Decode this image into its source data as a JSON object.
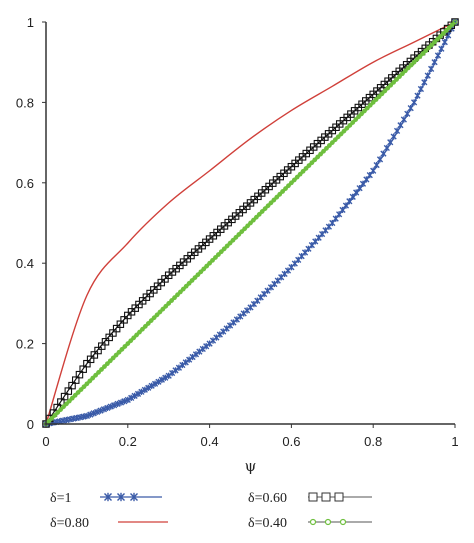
{
  "chart_data": {
    "type": "line",
    "title": "",
    "xlabel": "ψ",
    "ylabel": "",
    "xlim": [
      0,
      1
    ],
    "ylim": [
      0,
      1
    ],
    "xticks": [
      "0",
      "0.2",
      "0.4",
      "0.6",
      "0.8",
      "1"
    ],
    "yticks": [
      "0",
      "0.2",
      "0.4",
      "0.6",
      "0.8",
      "1"
    ],
    "grid": false,
    "legend_position": "bottom",
    "series": [
      {
        "name": "δ=1",
        "color": "#3a5ba8",
        "marker": "star",
        "x": [
          0,
          0.1,
          0.2,
          0.3,
          0.4,
          0.5,
          0.6,
          0.7,
          0.8,
          0.9,
          1
        ],
        "y": [
          0,
          0.02,
          0.06,
          0.12,
          0.2,
          0.29,
          0.39,
          0.5,
          0.63,
          0.8,
          1
        ]
      },
      {
        "name": "δ=0.80",
        "color": "#d0403a",
        "marker": "none",
        "x": [
          0,
          0.1,
          0.2,
          0.3,
          0.4,
          0.5,
          0.6,
          0.7,
          0.8,
          0.9,
          1
        ],
        "y": [
          0,
          0.32,
          0.45,
          0.55,
          0.63,
          0.71,
          0.78,
          0.84,
          0.9,
          0.95,
          1
        ]
      },
      {
        "name": "δ=0.60",
        "color": "#111111",
        "marker": "square",
        "x": [
          0,
          0.1,
          0.2,
          0.3,
          0.4,
          0.5,
          0.6,
          0.7,
          0.8,
          0.9,
          1
        ],
        "y": [
          0,
          0.15,
          0.27,
          0.37,
          0.46,
          0.55,
          0.64,
          0.73,
          0.82,
          0.91,
          1
        ]
      },
      {
        "name": "δ=0.40",
        "color": "#6fbf3f",
        "marker": "circle",
        "x": [
          0,
          0.1,
          0.2,
          0.3,
          0.4,
          0.5,
          0.6,
          0.7,
          0.8,
          0.9,
          1
        ],
        "y": [
          0,
          0.1,
          0.2,
          0.3,
          0.4,
          0.5,
          0.6,
          0.7,
          0.8,
          0.9,
          1
        ]
      }
    ]
  }
}
